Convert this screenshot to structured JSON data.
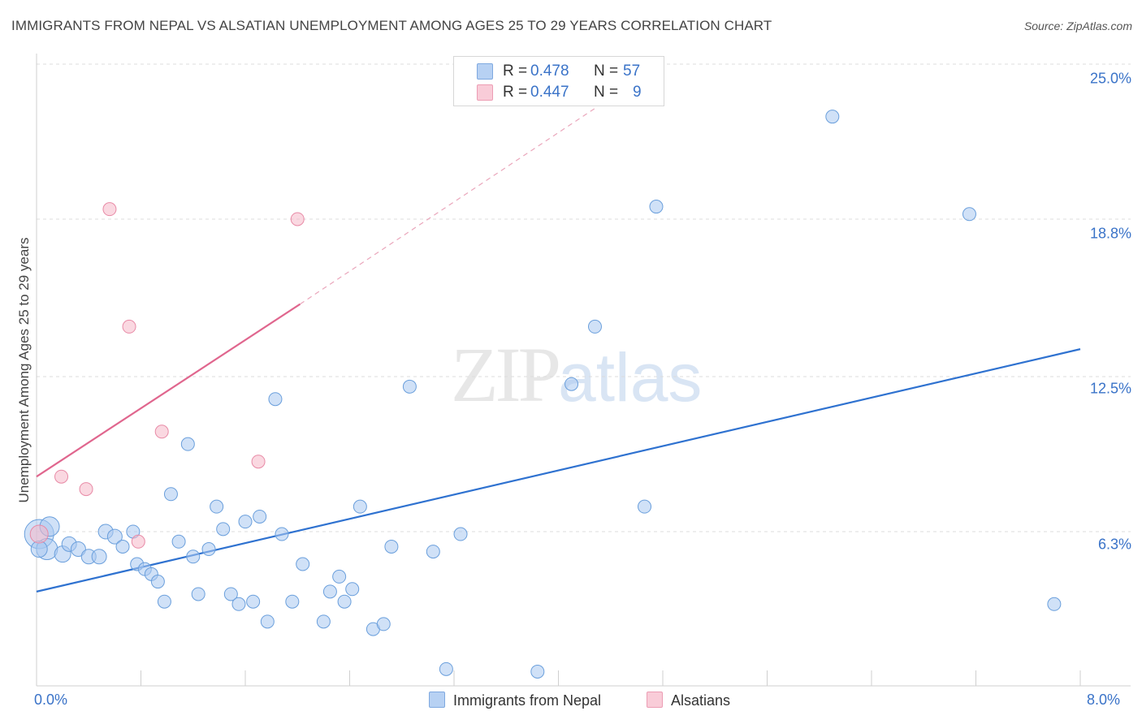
{
  "header": {
    "title": "IMMIGRANTS FROM NEPAL VS ALSATIAN UNEMPLOYMENT AMONG AGES 25 TO 29 YEARS CORRELATION CHART",
    "source": "Source: ZipAtlas.com"
  },
  "legend": {
    "r_label": "R =",
    "n_label": "N =",
    "series": [
      {
        "name": "Immigrants from Nepal",
        "r": "0.478",
        "n": "57",
        "color": "#a9c8f0"
      },
      {
        "name": "Alsatians",
        "r": "0.447",
        "n": "9",
        "color": "#f6b8c8"
      }
    ]
  },
  "watermark": {
    "zip": "ZIP",
    "atlas": "atlas"
  },
  "chart_data": {
    "type": "scatter",
    "title": "IMMIGRANTS FROM NEPAL VS ALSATIAN UNEMPLOYMENT AMONG AGES 25 TO 29 YEARS CORRELATION CHART",
    "xlabel": "",
    "ylabel": "Unemployment Among Ages 25 to 29 years",
    "xlim": [
      0,
      8
    ],
    "ylim": [
      0,
      26
    ],
    "x_tick_labels": [
      "0.0%",
      "8.0%"
    ],
    "y_ticks": [
      6.3,
      12.5,
      18.8,
      25.0
    ],
    "y_tick_labels": [
      "6.3%",
      "12.5%",
      "18.8%",
      "25.0%"
    ],
    "grid": true,
    "series": [
      {
        "name": "Immigrants from Nepal",
        "color": "#a9c8f0",
        "stroke": "#6a9fdc",
        "trend": {
          "x": [
            0,
            8
          ],
          "y": [
            3.9,
            13.6
          ]
        },
        "points": [
          [
            0.02,
            6.2,
            18
          ],
          [
            0.1,
            6.5,
            12
          ],
          [
            0.08,
            5.6,
            13
          ],
          [
            0.2,
            5.4,
            10
          ],
          [
            0.25,
            5.8,
            9
          ],
          [
            0.32,
            5.6,
            9
          ],
          [
            0.4,
            5.3,
            9
          ],
          [
            0.48,
            5.3,
            9
          ],
          [
            0.53,
            6.3,
            9
          ],
          [
            0.6,
            6.1,
            9
          ],
          [
            0.66,
            5.7,
            8
          ],
          [
            0.74,
            6.3,
            8
          ],
          [
            0.77,
            5.0,
            8
          ],
          [
            0.83,
            4.8,
            8
          ],
          [
            0.88,
            4.6,
            8
          ],
          [
            0.93,
            4.3,
            8
          ],
          [
            0.98,
            3.5,
            8
          ],
          [
            1.03,
            7.8,
            8
          ],
          [
            1.09,
            5.9,
            8
          ],
          [
            1.16,
            9.8,
            8
          ],
          [
            1.2,
            5.3,
            8
          ],
          [
            1.24,
            3.8,
            8
          ],
          [
            1.32,
            5.6,
            8
          ],
          [
            1.38,
            7.3,
            8
          ],
          [
            1.43,
            6.4,
            8
          ],
          [
            1.49,
            3.8,
            8
          ],
          [
            1.55,
            3.4,
            8
          ],
          [
            1.6,
            6.7,
            8
          ],
          [
            1.66,
            3.5,
            8
          ],
          [
            1.71,
            6.9,
            8
          ],
          [
            1.77,
            2.7,
            8
          ],
          [
            1.83,
            11.6,
            8
          ],
          [
            1.88,
            6.2,
            8
          ],
          [
            1.96,
            3.5,
            8
          ],
          [
            2.04,
            5.0,
            8
          ],
          [
            2.2,
            2.7,
            8
          ],
          [
            2.25,
            3.9,
            8
          ],
          [
            2.32,
            4.5,
            8
          ],
          [
            2.36,
            3.5,
            8
          ],
          [
            2.42,
            4.0,
            8
          ],
          [
            2.48,
            7.3,
            8
          ],
          [
            2.58,
            2.4,
            8
          ],
          [
            2.66,
            2.6,
            8
          ],
          [
            2.72,
            5.7,
            8
          ],
          [
            2.86,
            12.1,
            8
          ],
          [
            3.04,
            5.5,
            8
          ],
          [
            3.14,
            0.8,
            8
          ],
          [
            3.25,
            6.2,
            8
          ],
          [
            3.84,
            0.7,
            8
          ],
          [
            4.1,
            12.2,
            8
          ],
          [
            4.28,
            14.5,
            8
          ],
          [
            4.66,
            7.3,
            8
          ],
          [
            4.75,
            19.3,
            8
          ],
          [
            6.1,
            22.9,
            8
          ],
          [
            7.15,
            19.0,
            8
          ],
          [
            7.8,
            3.4,
            8
          ],
          [
            0.02,
            5.6,
            10
          ]
        ]
      },
      {
        "name": "Alsatians",
        "color": "#f6b8c8",
        "stroke": "#e88aa6",
        "trend": {
          "x": [
            0,
            2.02
          ],
          "y": [
            8.5,
            15.4
          ]
        },
        "trend_dashed": {
          "x": [
            2.02,
            4.3
          ],
          "y": [
            15.4,
            23.3
          ]
        },
        "points": [
          [
            0.02,
            6.2,
            11
          ],
          [
            0.19,
            8.5,
            8
          ],
          [
            0.38,
            8.0,
            8
          ],
          [
            0.56,
            19.2,
            8
          ],
          [
            0.71,
            14.5,
            8
          ],
          [
            0.96,
            10.3,
            8
          ],
          [
            1.7,
            9.1,
            8
          ],
          [
            2.0,
            18.8,
            8
          ],
          [
            0.78,
            5.9,
            8
          ]
        ]
      }
    ]
  }
}
